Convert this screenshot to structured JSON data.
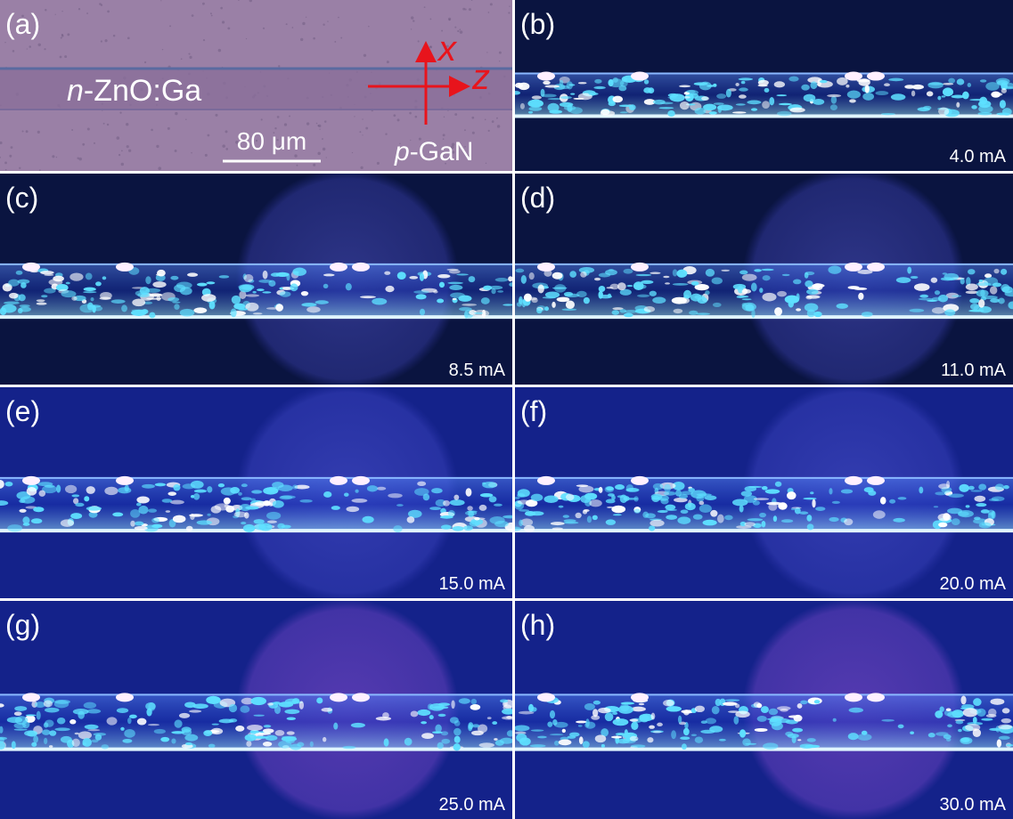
{
  "panels": [
    {
      "label": "(a)",
      "annotations": {
        "material": {
          "prefix": "n",
          "text": "-ZnO:Ga"
        },
        "scale_bar": "80 μm",
        "axis_x": "x",
        "axis_z": "z",
        "substrate": {
          "prefix": "p",
          "text": "-GaN"
        }
      }
    },
    {
      "label": "(b)",
      "current": "4.0 mA"
    },
    {
      "label": "(c)",
      "current": "8.5 mA"
    },
    {
      "label": "(d)",
      "current": "11.0 mA"
    },
    {
      "label": "(e)",
      "current": "15.0 mA"
    },
    {
      "label": "(f)",
      "current": "20.0 mA"
    },
    {
      "label": "(g)",
      "current": "25.0 mA"
    },
    {
      "label": "(h)",
      "current": "30.0 mA"
    }
  ]
}
